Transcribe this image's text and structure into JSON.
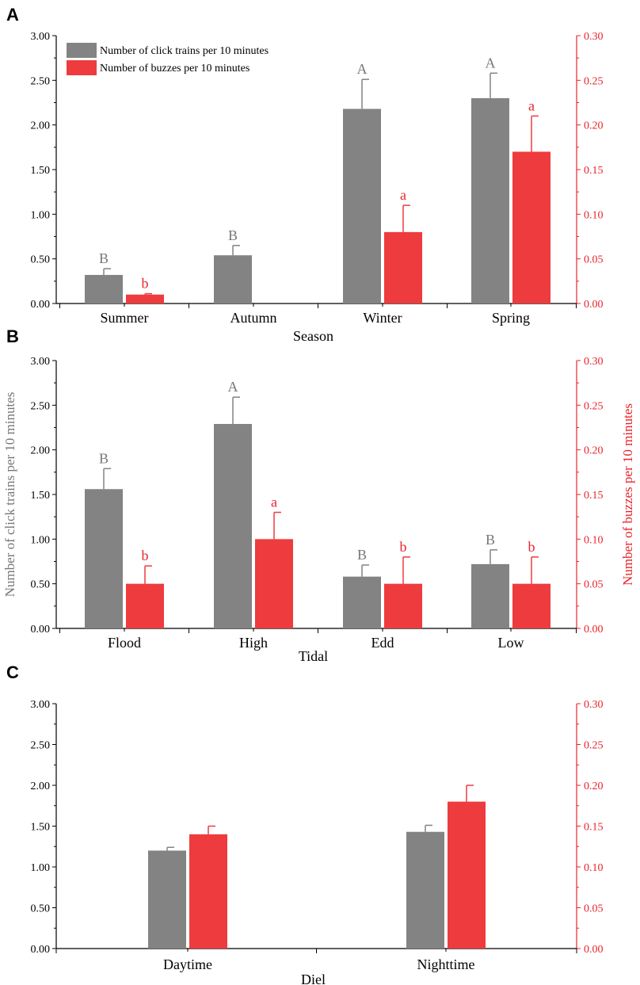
{
  "colors": {
    "gray": "#838383",
    "red": "#ee3b3e",
    "grayText": "#777777",
    "redText": "#e8242a",
    "axis": "#000000"
  },
  "legend": {
    "click": "Number of click trains per 10 minutes",
    "buzz": "Number of buzzes per 10 minutes"
  },
  "chart_data": [
    {
      "panel": "A",
      "type": "bar",
      "xlabel": "Season",
      "ylabel_left": "",
      "ylabel_right": "",
      "ylim_left": [
        0,
        3
      ],
      "ylim_right": [
        0,
        0.3
      ],
      "left_ticks": [
        "0.00",
        "0.50",
        "1.00",
        "1.50",
        "2.00",
        "2.50",
        "3.00"
      ],
      "right_ticks": [
        "0.00",
        "0.05",
        "0.10",
        "0.15",
        "0.20",
        "0.25",
        "0.30"
      ],
      "categories": [
        "Summer",
        "Autumn",
        "Winter",
        "Spring"
      ],
      "series": [
        {
          "name": "Number of click trains per 10 minutes",
          "axis": "left",
          "values": [
            0.32,
            0.54,
            2.18,
            2.3
          ],
          "errors": [
            0.07,
            0.11,
            0.33,
            0.28
          ],
          "letters": [
            "B",
            "B",
            "A",
            "A"
          ]
        },
        {
          "name": "Number of buzzes per 10 minutes",
          "axis": "right",
          "values": [
            0.01,
            null,
            0.08,
            0.17
          ],
          "errors": [
            0.001,
            null,
            0.03,
            0.04
          ],
          "letters": [
            "b",
            "",
            "a",
            "a"
          ]
        }
      ]
    },
    {
      "panel": "B",
      "type": "bar",
      "xlabel": "Tidal",
      "ylabel_left": "Number of click trains per 10 minutes",
      "ylabel_right": "Number of buzzes per 10 minutes",
      "ylim_left": [
        0,
        3
      ],
      "ylim_right": [
        0,
        0.3
      ],
      "left_ticks": [
        "0.00",
        "0.50",
        "1.00",
        "1.50",
        "2.00",
        "2.50",
        "3.00"
      ],
      "right_ticks": [
        "0.00",
        "0.05",
        "0.10",
        "0.15",
        "0.20",
        "0.25",
        "0.30"
      ],
      "categories": [
        "Flood",
        "High",
        "Edd",
        "Low"
      ],
      "series": [
        {
          "name": "Number of click trains per 10 minutes",
          "axis": "left",
          "values": [
            1.56,
            2.29,
            0.58,
            0.72
          ],
          "errors": [
            0.23,
            0.3,
            0.13,
            0.16
          ],
          "letters": [
            "B",
            "A",
            "B",
            "B"
          ]
        },
        {
          "name": "Number of buzzes per 10 minutes",
          "axis": "right",
          "values": [
            0.05,
            0.1,
            0.05,
            0.05
          ],
          "errors": [
            0.02,
            0.03,
            0.03,
            0.03
          ],
          "letters": [
            "b",
            "a",
            "b",
            "b"
          ]
        }
      ]
    },
    {
      "panel": "C",
      "type": "bar",
      "xlabel": "Diel",
      "ylabel_left": "",
      "ylabel_right": "",
      "ylim_left": [
        0,
        3
      ],
      "ylim_right": [
        0,
        0.3
      ],
      "left_ticks": [
        "0.00",
        "0.50",
        "1.00",
        "1.50",
        "2.00",
        "2.50",
        "3.00"
      ],
      "right_ticks": [
        "0.00",
        "0.05",
        "0.10",
        "0.15",
        "0.20",
        "0.25",
        "0.30"
      ],
      "categories": [
        "Daytime",
        "Nighttime"
      ],
      "series": [
        {
          "name": "Number of click trains per 10 minutes",
          "axis": "left",
          "values": [
            1.2,
            1.43
          ],
          "errors": [
            0.04,
            0.08
          ],
          "letters": [
            "",
            ""
          ]
        },
        {
          "name": "Number of buzzes per 10 minutes",
          "axis": "right",
          "values": [
            0.14,
            0.18
          ],
          "errors": [
            0.01,
            0.02
          ],
          "letters": [
            "",
            ""
          ]
        }
      ]
    }
  ]
}
